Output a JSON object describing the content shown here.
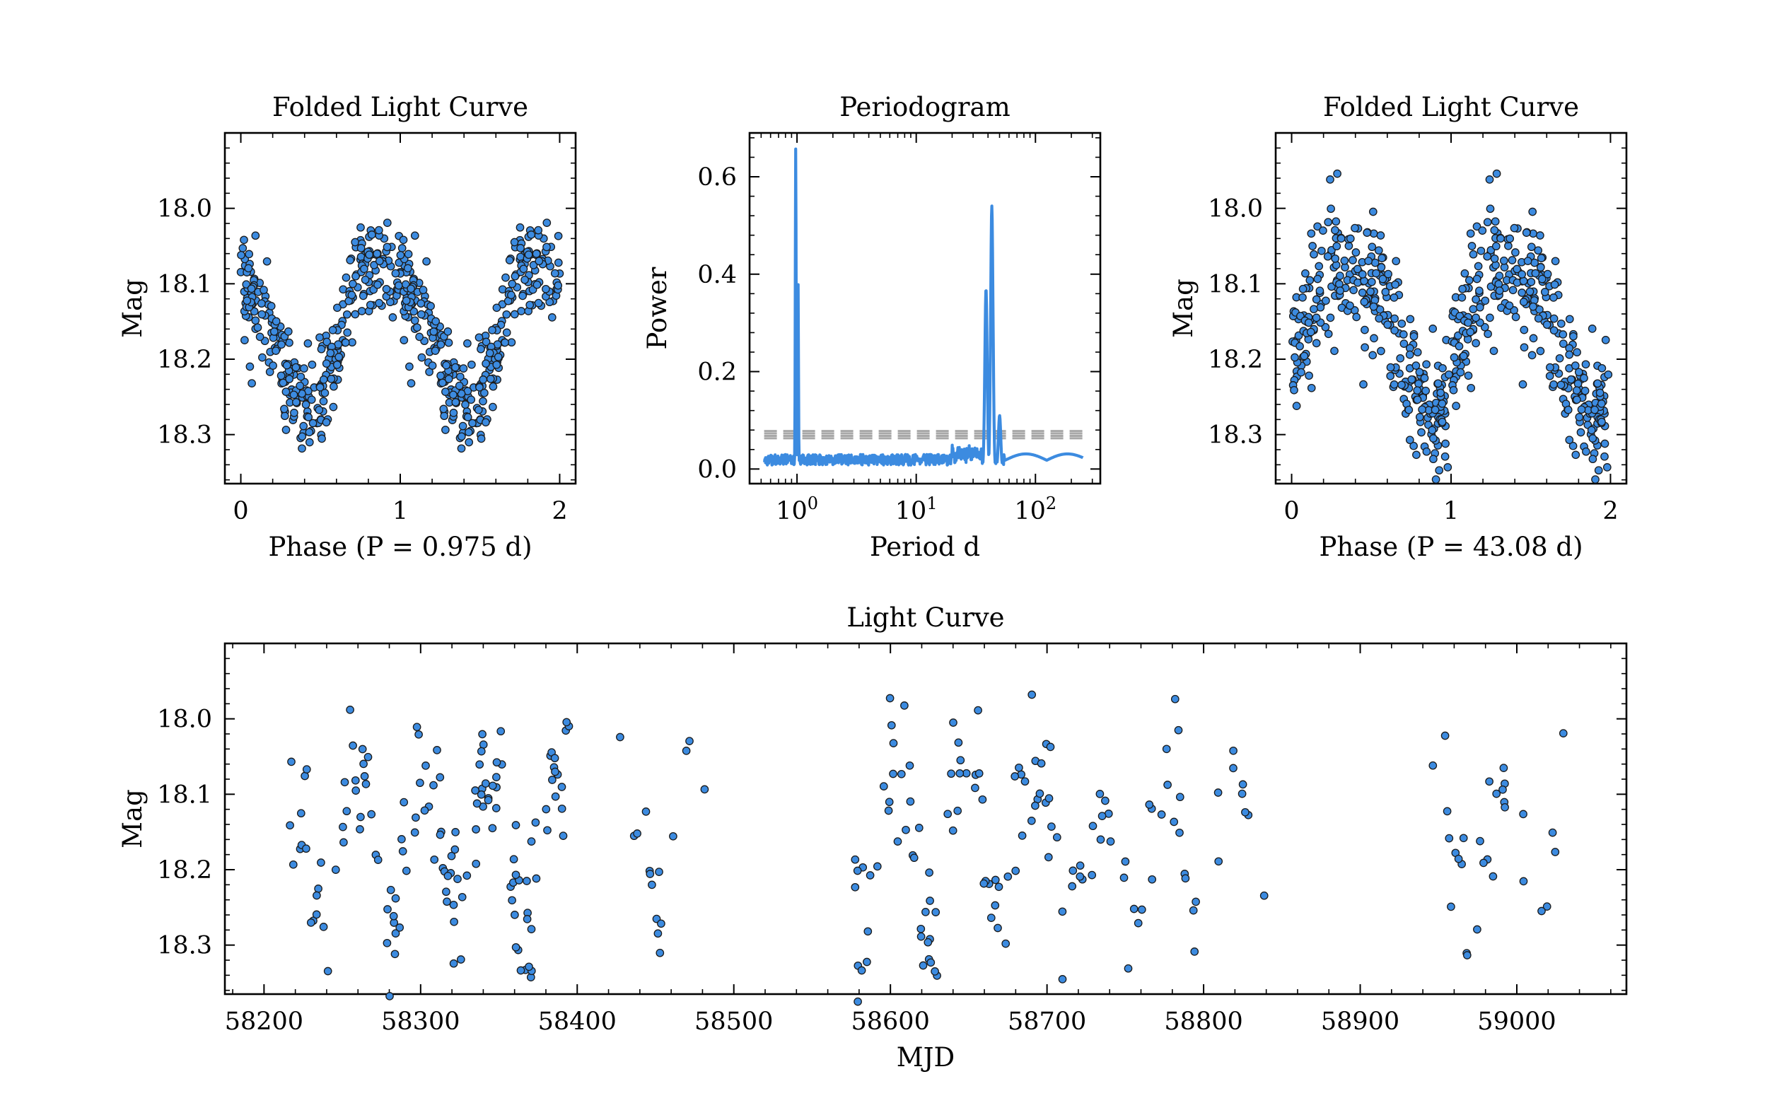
{
  "colors": {
    "point_fill": "#3c8be0",
    "point_edge": "#1a1a1a",
    "line": "#3c8be0",
    "threshold": "#a8a8a8",
    "axis": "#000000"
  },
  "chart_data": [
    {
      "id": "fold1",
      "type": "scatter",
      "title": "Folded Light Curve",
      "xlabel": "Phase (P = 0.975 d)",
      "ylabel": "Mag",
      "xlim": [
        -0.1,
        2.1
      ],
      "ylim": [
        18.365,
        17.9
      ],
      "y_inverted": true,
      "xticks": [
        0,
        1,
        2
      ],
      "xticklabels": [
        "0",
        "1",
        "2"
      ],
      "yticks": [
        18.0,
        18.1,
        18.2,
        18.3
      ],
      "yticklabels": [
        "18.0",
        "18.1",
        "18.2",
        "18.3"
      ],
      "profile": {
        "phase": [
          0.0,
          0.05,
          0.1,
          0.15,
          0.2,
          0.25,
          0.3,
          0.35,
          0.4,
          0.45,
          0.5,
          0.55,
          0.6,
          0.65,
          0.7,
          0.75,
          0.8,
          0.85,
          0.9,
          0.95,
          1.0
        ],
        "mag": [
          18.11,
          18.1,
          18.12,
          18.15,
          18.18,
          18.21,
          18.24,
          18.26,
          18.27,
          18.265,
          18.25,
          18.22,
          18.18,
          18.15,
          18.1,
          18.07,
          18.06,
          18.07,
          18.08,
          18.09,
          18.11
        ]
      },
      "scatter_mag": 0.035,
      "n_points": 300
    },
    {
      "id": "pgram",
      "type": "line",
      "title": "Periodogram",
      "xlabel": "Period d",
      "ylabel": "Power",
      "xscale": "log",
      "xlim": [
        0.4,
        350
      ],
      "ylim": [
        -0.03,
        0.69
      ],
      "xticks": [
        1,
        10,
        100
      ],
      "xticklabels": [
        "10^0",
        "10^1",
        "10^2"
      ],
      "yticks": [
        0.0,
        0.2,
        0.4,
        0.6
      ],
      "yticklabels": [
        "0.0",
        "0.2",
        "0.4",
        "0.6"
      ],
      "peaks": [
        {
          "period": 0.975,
          "power": 0.66
        },
        {
          "period": 1.02,
          "power": 0.39
        },
        {
          "period": 38.5,
          "power": 0.37
        },
        {
          "period": 43.08,
          "power": 0.54
        },
        {
          "period": 50.0,
          "power": 0.11
        }
      ],
      "thresholds": [
        0.063,
        0.068,
        0.073,
        0.078
      ],
      "baseline_max": 0.045,
      "period_range": [
        0.53,
        250
      ]
    },
    {
      "id": "fold2",
      "type": "scatter",
      "title": "Folded Light Curve",
      "xlabel": "Phase (P = 43.08 d)",
      "ylabel": "Mag",
      "xlim": [
        -0.1,
        2.1
      ],
      "ylim": [
        18.365,
        17.9
      ],
      "y_inverted": true,
      "xticks": [
        0,
        1,
        2
      ],
      "xticklabels": [
        "0",
        "1",
        "2"
      ],
      "yticks": [
        18.0,
        18.1,
        18.2,
        18.3
      ],
      "yticklabels": [
        "18.0",
        "18.1",
        "18.2",
        "18.3"
      ],
      "profile": {
        "phase": [
          0.0,
          0.05,
          0.1,
          0.15,
          0.2,
          0.25,
          0.3,
          0.35,
          0.4,
          0.45,
          0.5,
          0.55,
          0.6,
          0.65,
          0.7,
          0.75,
          0.8,
          0.85,
          0.9,
          0.95,
          1.0
        ],
        "mag": [
          18.24,
          18.2,
          18.15,
          18.11,
          18.08,
          18.07,
          18.07,
          18.08,
          18.09,
          18.1,
          18.1,
          18.11,
          18.13,
          18.16,
          18.2,
          18.23,
          18.25,
          18.27,
          18.28,
          18.27,
          18.24
        ]
      },
      "scatter_mag": 0.045,
      "n_points": 300
    },
    {
      "id": "lc",
      "type": "scatter",
      "title": "Light Curve",
      "xlabel": "MJD",
      "ylabel": "Mag",
      "xlim": [
        58175,
        59070
      ],
      "ylim": [
        18.365,
        17.9
      ],
      "y_inverted": true,
      "xticks": [
        58200,
        58300,
        58400,
        58500,
        58600,
        58700,
        58800,
        58900,
        59000
      ],
      "xticklabels": [
        "58200",
        "58300",
        "58400",
        "58500",
        "58600",
        "58700",
        "58800",
        "58900",
        "59000"
      ],
      "yticks": [
        18.0,
        18.1,
        18.2,
        18.3
      ],
      "yticklabels": [
        "18.0",
        "18.1",
        "18.2",
        "18.3"
      ],
      "seasons": [
        {
          "mjd": [
            58215,
            58395
          ],
          "n": 140
        },
        {
          "mjd": [
            58425,
            58482
          ],
          "n": 16
        },
        {
          "mjd": [
            58575,
            58840
          ],
          "n": 130
        },
        {
          "mjd": [
            58945,
            59030
          ],
          "n": 30
        }
      ],
      "period_days": 43.08
    }
  ]
}
